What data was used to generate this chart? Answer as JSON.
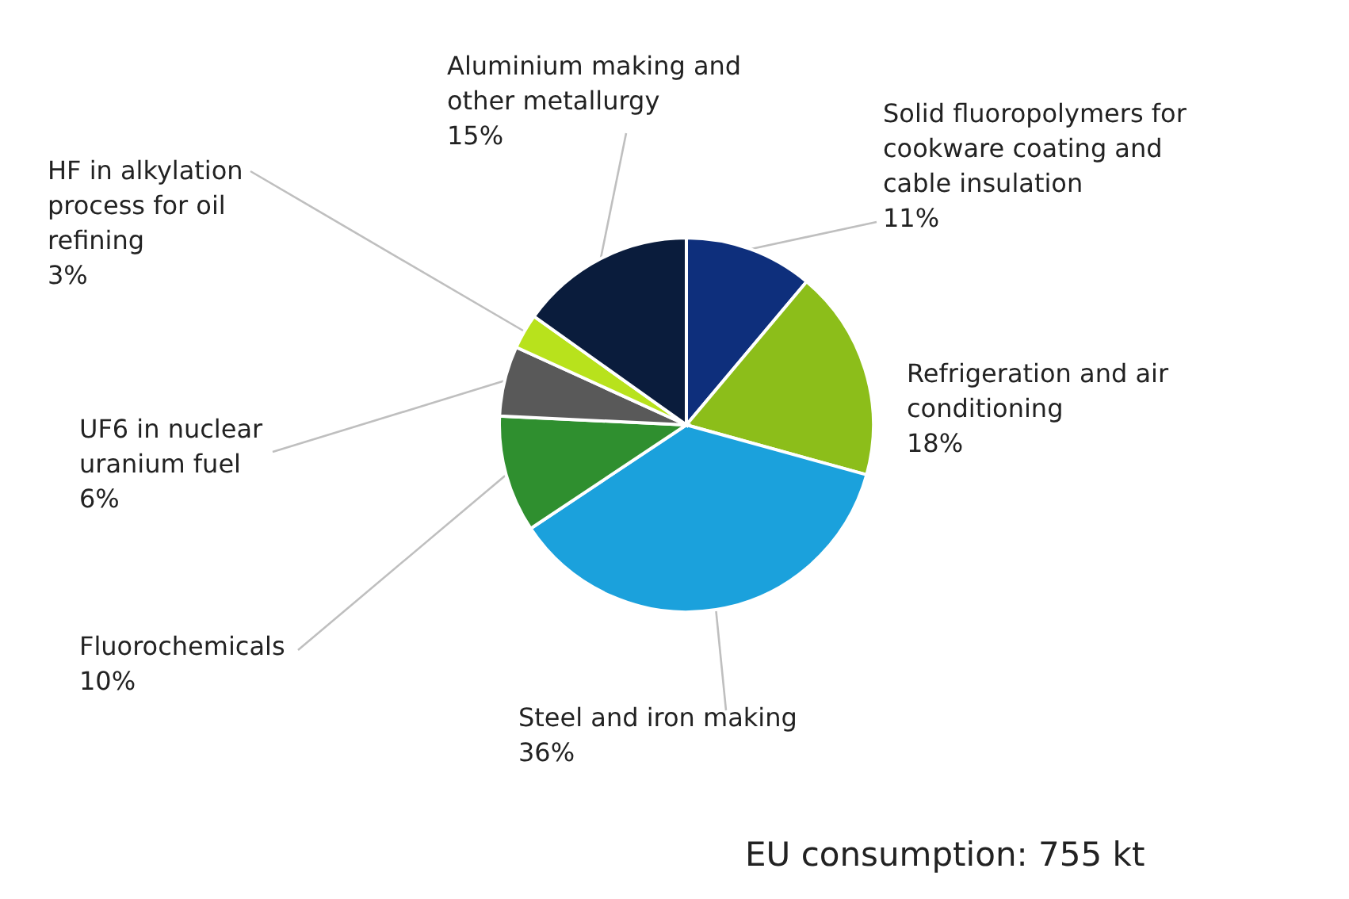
{
  "chart_data": {
    "type": "pie",
    "categories": [
      "Solid fluoropolymers for cookware coating and cable insulation",
      "Refrigeration and air conditioning",
      "Steel and iron making",
      "Fluorochemicals",
      "UF6 in nuclear uranium fuel",
      "HF in alkylation process for oil refining",
      "Aluminium making and other metallurgy"
    ],
    "values": [
      11,
      18,
      36,
      10,
      6,
      3,
      15
    ],
    "value_labels": [
      "11%",
      "18%",
      "36%",
      "10%",
      "6%",
      "3%",
      "15%"
    ],
    "colors": [
      "#0e2f7c",
      "#8cbe1a",
      "#1ba1dc",
      "#2f8f2f",
      "#595959",
      "#b8e21c",
      "#0a1c3c"
    ],
    "annotations": [
      "EU consumption: 755 kt"
    ]
  }
}
